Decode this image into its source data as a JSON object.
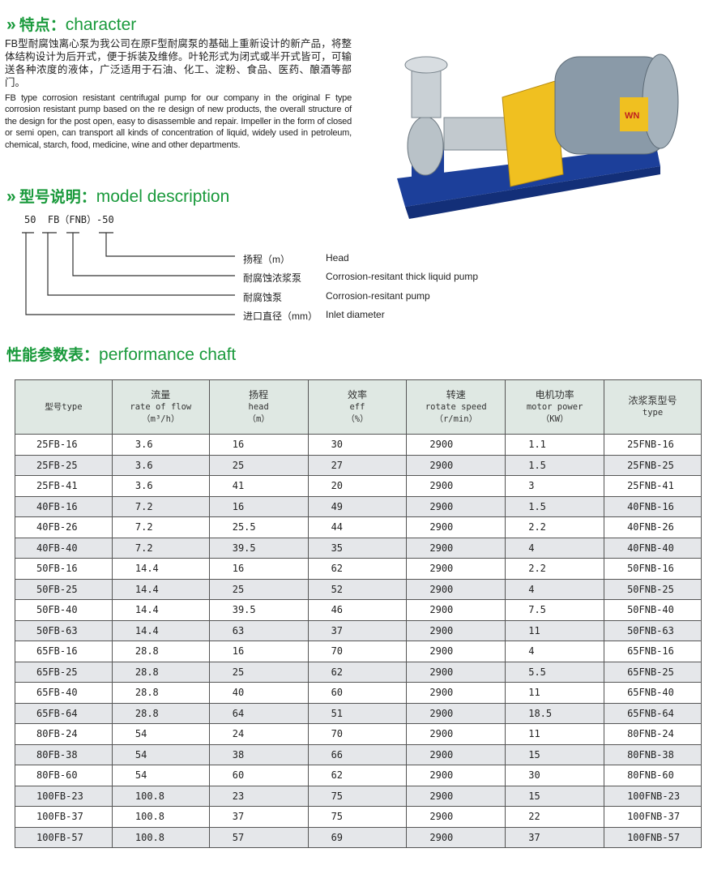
{
  "character": {
    "heading_zh": "特点：",
    "heading_en": "character",
    "text_zh": "FB型耐腐蚀离心泵为我公司在原F型耐腐泵的基础上重新设计的新产品，将整体结构设计为后开式，便于拆装及维修。叶轮形式为闭式或半开式皆可，可输送各种浓度的液体，广泛适用于石油、化工、淀粉、食品、医药、酿酒等部门。",
    "text_en": "FB type corrosion resistant centrifugal pump for our company in the original F type corrosion resistant pump based on the re design of new products, the overall structure of the design for the post open, easy to disassemble and repair. Impeller in the form of closed or semi open, can transport all kinds of concentration of liquid, widely used in petroleum, chemical, starch, food, medicine, wine and other departments."
  },
  "pump_image": {
    "brand_plate": "WN",
    "colors": {
      "motor": "#8a9aa8",
      "base": "#1c3f9a",
      "guard": "#f0c020"
    }
  },
  "model": {
    "heading_zh": "型号说明：",
    "heading_en": "model description",
    "code": "50  FB（FNB）-50",
    "items": [
      {
        "zh": "扬程（m）",
        "en": "Head"
      },
      {
        "zh": "耐腐蚀浓浆泵",
        "en": "Corrosion-resitant thick liquid pump"
      },
      {
        "zh": "耐腐蚀泵",
        "en": "Corrosion-resitant pump"
      },
      {
        "zh": "进口直径（mm）",
        "en": "Inlet diameter"
      }
    ]
  },
  "performance": {
    "heading_zh": "性能参数表：",
    "heading_en": "performance chaft",
    "headers": [
      [
        "型号type"
      ],
      [
        "流量",
        "rate of flow",
        "（m³/h）"
      ],
      [
        "扬程",
        "head",
        "（m）"
      ],
      [
        "效率",
        "eff",
        "（%）"
      ],
      [
        "转速",
        "rotate speed",
        "（r/min）"
      ],
      [
        "电机功率",
        "motor power",
        "（KW）"
      ],
      [
        "浓浆泵型号",
        "type"
      ]
    ],
    "rows": [
      [
        "25FB-16",
        "3.6",
        "16",
        "30",
        "2900",
        "1.1",
        "25FNB-16"
      ],
      [
        "25FB-25",
        "3.6",
        "25",
        "27",
        "2900",
        "1.5",
        "25FNB-25"
      ],
      [
        "25FB-41",
        "3.6",
        "41",
        "20",
        "2900",
        "3",
        "25FNB-41"
      ],
      [
        "40FB-16",
        "7.2",
        "16",
        "49",
        "2900",
        "1.5",
        "40FNB-16"
      ],
      [
        "40FB-26",
        "7.2",
        "25.5",
        "44",
        "2900",
        "2.2",
        "40FNB-26"
      ],
      [
        "40FB-40",
        "7.2",
        "39.5",
        "35",
        "2900",
        "4",
        "40FNB-40"
      ],
      [
        "50FB-16",
        "14.4",
        "16",
        "62",
        "2900",
        "2.2",
        "50FNB-16"
      ],
      [
        "50FB-25",
        "14.4",
        "25",
        "52",
        "2900",
        "4",
        "50FNB-25"
      ],
      [
        "50FB-40",
        "14.4",
        "39.5",
        "46",
        "2900",
        "7.5",
        "50FNB-40"
      ],
      [
        "50FB-63",
        "14.4",
        "63",
        "37",
        "2900",
        "11",
        "50FNB-63"
      ],
      [
        "65FB-16",
        "28.8",
        "16",
        "70",
        "2900",
        "4",
        "65FNB-16"
      ],
      [
        "65FB-25",
        "28.8",
        "25",
        "62",
        "2900",
        "5.5",
        "65FNB-25"
      ],
      [
        "65FB-40",
        "28.8",
        "40",
        "60",
        "2900",
        "11",
        "65FNB-40"
      ],
      [
        "65FB-64",
        "28.8",
        "64",
        "51",
        "2900",
        "18.5",
        "65FNB-64"
      ],
      [
        "80FB-24",
        "54",
        "24",
        "70",
        "2900",
        "11",
        "80FNB-24"
      ],
      [
        "80FB-38",
        "54",
        "38",
        "66",
        "2900",
        "15",
        "80FNB-38"
      ],
      [
        "80FB-60",
        "54",
        "60",
        "62",
        "2900",
        "30",
        "80FNB-60"
      ],
      [
        "100FB-23",
        "100.8",
        "23",
        "75",
        "2900",
        "15",
        "100FNB-23"
      ],
      [
        "100FB-37",
        "100.8",
        "37",
        "75",
        "2900",
        "22",
        "100FNB-37"
      ],
      [
        "100FB-57",
        "100.8",
        "57",
        "69",
        "2900",
        "37",
        "100FNB-57"
      ]
    ]
  },
  "colors": {
    "heading": "#1a9a3c",
    "header_bg": "#dfe8e3",
    "row_alt": "#e5e7ea"
  }
}
